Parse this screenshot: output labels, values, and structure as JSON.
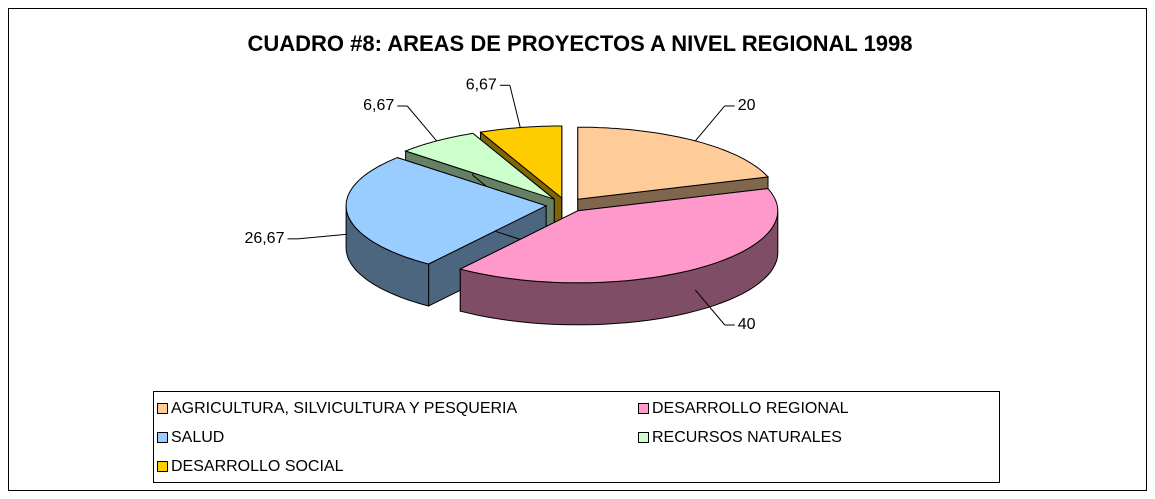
{
  "chart_data": {
    "type": "pie3d",
    "title": "CUADRO #8: AREAS DE PROYECTOS A NIVEL REGIONAL 1998",
    "categories": [
      "AGRICULTURA, SILVICULTURA Y PESQUERIA",
      "DESARROLLO REGIONAL",
      "SALUD",
      "RECURSOS NATURALES",
      "DESARROLLO SOCIAL"
    ],
    "values": [
      20,
      40,
      26.67,
      6.67,
      6.67
    ],
    "value_labels": [
      "20",
      "40",
      "26,67",
      "6,67",
      "6,67"
    ],
    "colors": [
      "#ffcc99",
      "#ff99cc",
      "#99ccff",
      "#ccffcc",
      "#ffcc00"
    ]
  }
}
